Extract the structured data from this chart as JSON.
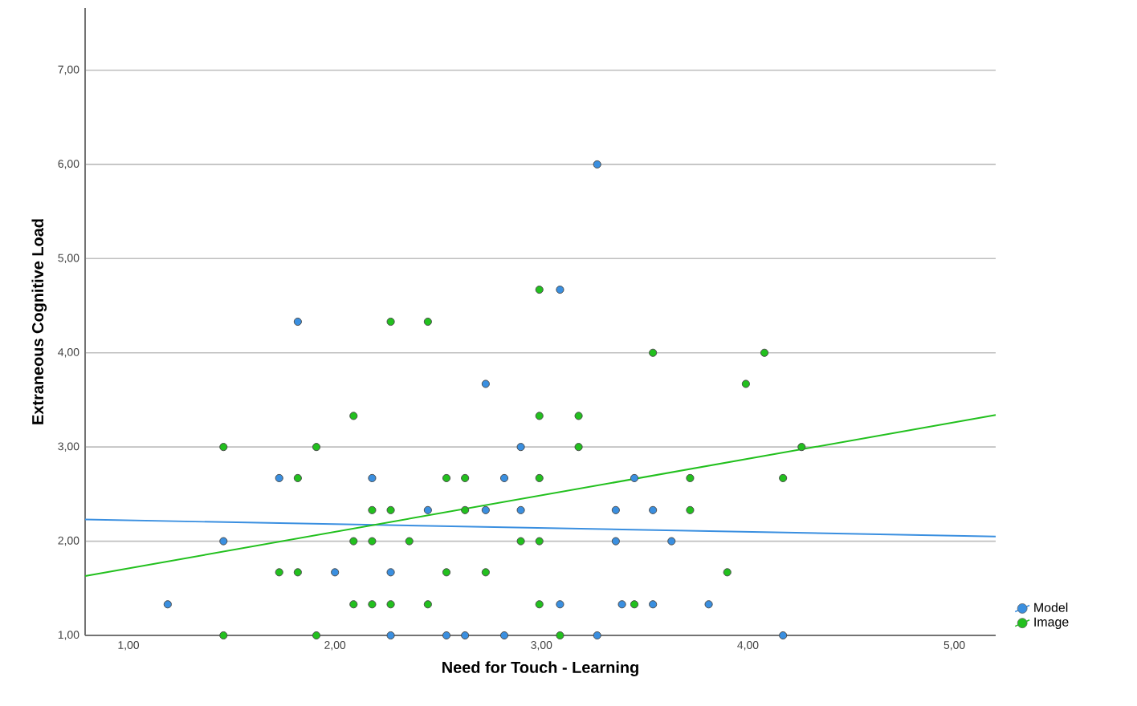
{
  "chart_data": {
    "type": "scatter",
    "xlabel": "Need for Touch - Learning",
    "ylabel": "Extraneous Cognitive Load",
    "xlim": [
      0.79,
      5.2
    ],
    "ylim": [
      1,
      7.66
    ],
    "xticks": [
      {
        "value": 1,
        "label": "1,00"
      },
      {
        "value": 2,
        "label": "2,00"
      },
      {
        "value": 3,
        "label": "3,00"
      },
      {
        "value": 4,
        "label": "4,00"
      },
      {
        "value": 5,
        "label": "5,00"
      }
    ],
    "yticks": [
      {
        "value": 1,
        "label": "1,00"
      },
      {
        "value": 2,
        "label": "2,00"
      },
      {
        "value": 3,
        "label": "3,00"
      },
      {
        "value": 4,
        "label": "4,00"
      },
      {
        "value": 5,
        "label": "5,00"
      },
      {
        "value": 6,
        "label": "6,00"
      },
      {
        "value": 7,
        "label": "7,00"
      }
    ],
    "grid": "y",
    "legend": "bottom right",
    "series": [
      {
        "name": "Model",
        "marker": "circle",
        "color": "#3a8fe0",
        "x": [
          1.82,
          3.09,
          3.27,
          2.73,
          2.9,
          1.73,
          2.18,
          2.82,
          2.45,
          2.73,
          2.9,
          1.46,
          2.0,
          2.27,
          1.19,
          2.27,
          2.54,
          2.63,
          2.82,
          3.45,
          3.36,
          3.54,
          3.36,
          3.63,
          3.09,
          3.39,
          3.54,
          3.81,
          3.27,
          4.17
        ],
        "values": [
          4.33,
          4.67,
          6,
          3.67,
          3,
          2.67,
          2.67,
          2.67,
          2.33,
          2.33,
          2.33,
          2,
          1.67,
          1.67,
          1.33,
          1,
          1,
          1,
          1,
          2.67,
          2.33,
          2.33,
          2,
          2,
          1.33,
          1.33,
          1.33,
          1.33,
          1,
          1
        ]
      },
      {
        "name": "Image",
        "marker": "circle",
        "color": "#22c01e",
        "x": [
          2.27,
          2.45,
          2.99,
          3.54,
          4.08,
          2.09,
          2.99,
          3.18,
          1.46,
          1.91,
          3.18,
          4.26,
          1.82,
          2.54,
          2.63,
          2.99,
          3.72,
          4.17,
          2.18,
          2.27,
          2.63,
          3.72,
          2.09,
          2.18,
          2.36,
          2.9,
          2.99,
          1.73,
          1.82,
          2.54,
          2.73,
          3.9,
          2.09,
          2.18,
          2.27,
          2.45,
          2.99,
          3.45,
          1.46,
          1.91,
          3.09,
          3.99
        ],
        "values": [
          4.33,
          4.33,
          4.67,
          4,
          4,
          3.33,
          3.33,
          3.33,
          3,
          3,
          3,
          3,
          2.67,
          2.67,
          2.67,
          2.67,
          2.67,
          2.67,
          2.33,
          2.33,
          2.33,
          2.33,
          2,
          2,
          2,
          2,
          2,
          1.67,
          1.67,
          1.67,
          1.67,
          1.67,
          1.33,
          1.33,
          1.33,
          1.33,
          1.33,
          1.33,
          1,
          1,
          1,
          3.67
        ]
      },
      {
        "type": "line",
        "marker": "none",
        "color": "#3a8fe0",
        "x": [
          0.79,
          5.2
        ],
        "values": [
          2.23,
          2.05
        ]
      },
      {
        "type": "line",
        "marker": "none",
        "color": "#22c01e",
        "x": [
          0.79,
          5.2
        ],
        "values": [
          1.63,
          3.34
        ]
      }
    ]
  }
}
